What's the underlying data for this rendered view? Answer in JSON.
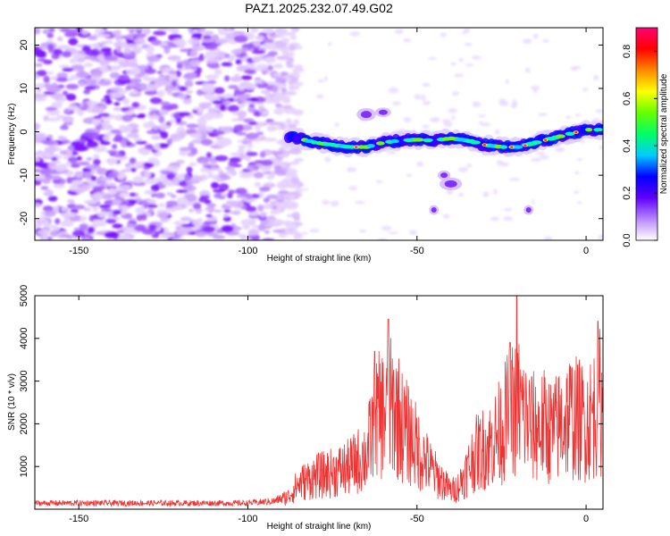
{
  "figure": {
    "title": "PAZ1.2025.232.07.49.G02"
  },
  "colors": {
    "snr_line": "#ee3333",
    "frame": "#000000"
  },
  "chart_data": [
    {
      "type": "heatmap",
      "xlabel": "Height of straight line (km)",
      "ylabel": "Frequency (Hz)",
      "xlim": [
        -163,
        5
      ],
      "ylim": [
        -25,
        24
      ],
      "xticks": [
        -150,
        -100,
        -50,
        0
      ],
      "yticks": [
        -20,
        -10,
        0,
        10,
        20
      ],
      "colorbar": {
        "label": "Normalized spectral amplitude",
        "range": [
          0,
          0.9
        ],
        "ticks": [
          0.0,
          0.2,
          0.4,
          0.6,
          0.8
        ],
        "colormap": "rainbow"
      },
      "trace_centerline": {
        "x": [
          -88,
          -85,
          -80,
          -75,
          -70,
          -65,
          -60,
          -55,
          -50,
          -45,
          -40,
          -35,
          -30,
          -25,
          -20,
          -15,
          -10,
          -5,
          0,
          5
        ],
        "y": [
          -1.0,
          -1.5,
          -2.5,
          -3.0,
          -3.5,
          -3.5,
          -2.5,
          -2.0,
          -1.8,
          -2.0,
          -1.5,
          -2.0,
          -3.0,
          -3.5,
          -3.5,
          -2.5,
          -1.5,
          -0.5,
          0.5,
          0.5
        ]
      },
      "noise_region_x": [
        -163,
        -88
      ]
    },
    {
      "type": "line",
      "xlabel": "Height of straight line (km)",
      "ylabel": "SNR (10 * v/v)",
      "xlim": [
        -163,
        5
      ],
      "ylim": [
        0,
        5000
      ],
      "xticks": [
        -150,
        -100,
        -50,
        0
      ],
      "yticks": [
        1000,
        2000,
        3000,
        4000,
        5000
      ],
      "series": [
        {
          "envelope_x": [
            -163,
            -120,
            -100,
            -92,
            -88,
            -85,
            -80,
            -75,
            -70,
            -65,
            -62,
            -58,
            -56,
            -54,
            -52,
            -50,
            -48,
            -45,
            -42,
            -40,
            -38,
            -35,
            -33,
            -30,
            -28,
            -25,
            -23,
            -20,
            -18,
            -15,
            -12,
            -10,
            -8,
            -5,
            -3,
            0,
            2,
            4,
            5
          ],
          "envelope_y": [
            150,
            150,
            150,
            200,
            350,
            700,
            900,
            1000,
            1150,
            1500,
            2500,
            2800,
            2700,
            2200,
            2000,
            1700,
            1400,
            1000,
            700,
            500,
            600,
            1100,
            1500,
            1700,
            1800,
            2200,
            2600,
            2900,
            2500,
            2200,
            2300,
            2100,
            2300,
            2600,
            2500,
            2400,
            2600,
            3000,
            2700
          ],
          "peaks": [
            {
              "x": -58.5,
              "y": 4450
            },
            {
              "x": -20.5,
              "y": 5000
            },
            {
              "x": 3.5,
              "y": 4400
            },
            {
              "x": -62.5,
              "y": 3700
            },
            {
              "x": -22.5,
              "y": 3900
            }
          ]
        }
      ]
    }
  ]
}
